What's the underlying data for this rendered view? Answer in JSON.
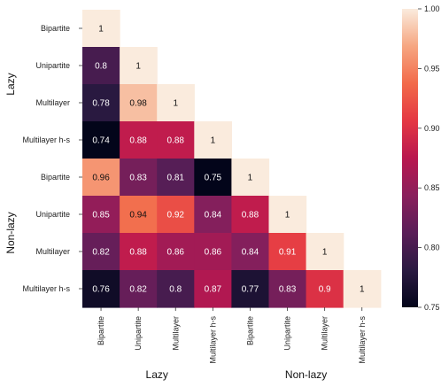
{
  "chart_data": {
    "type": "heatmap",
    "rows": [
      "Bipartite",
      "Unipartite",
      "Multilayer",
      "Multilayer h-s",
      "Bipartite",
      "Unipartite",
      "Multilayer",
      "Multilayer h-s"
    ],
    "cols": [
      "Bipartite",
      "Unipartite",
      "Multilayer",
      "Multilayer h-s",
      "Bipartite",
      "Unipartite",
      "Multilayer",
      "Multilayer h-s"
    ],
    "values": [
      [
        1
      ],
      [
        0.8,
        1
      ],
      [
        0.78,
        0.98,
        1
      ],
      [
        0.74,
        0.88,
        0.88,
        1
      ],
      [
        0.96,
        0.83,
        0.81,
        0.75,
        1
      ],
      [
        0.85,
        0.94,
        0.92,
        0.84,
        0.88,
        1
      ],
      [
        0.82,
        0.88,
        0.86,
        0.86,
        0.84,
        0.91,
        1
      ],
      [
        0.76,
        0.82,
        0.8,
        0.87,
        0.77,
        0.83,
        0.9,
        1
      ]
    ],
    "row_groups": [
      {
        "label": "Lazy",
        "count": 4
      },
      {
        "label": "Non-lazy",
        "count": 4
      }
    ],
    "col_groups": [
      {
        "label": "Lazy",
        "count": 4
      },
      {
        "label": "Non-lazy",
        "count": 4
      }
    ],
    "vmin": 0.75,
    "vmax": 1.0,
    "colorbar_ticks": [
      "0.75",
      "0.80",
      "0.85",
      "0.90",
      "0.95",
      "1.00"
    ],
    "colormap": "rocket",
    "mask": "upper-triangle"
  }
}
